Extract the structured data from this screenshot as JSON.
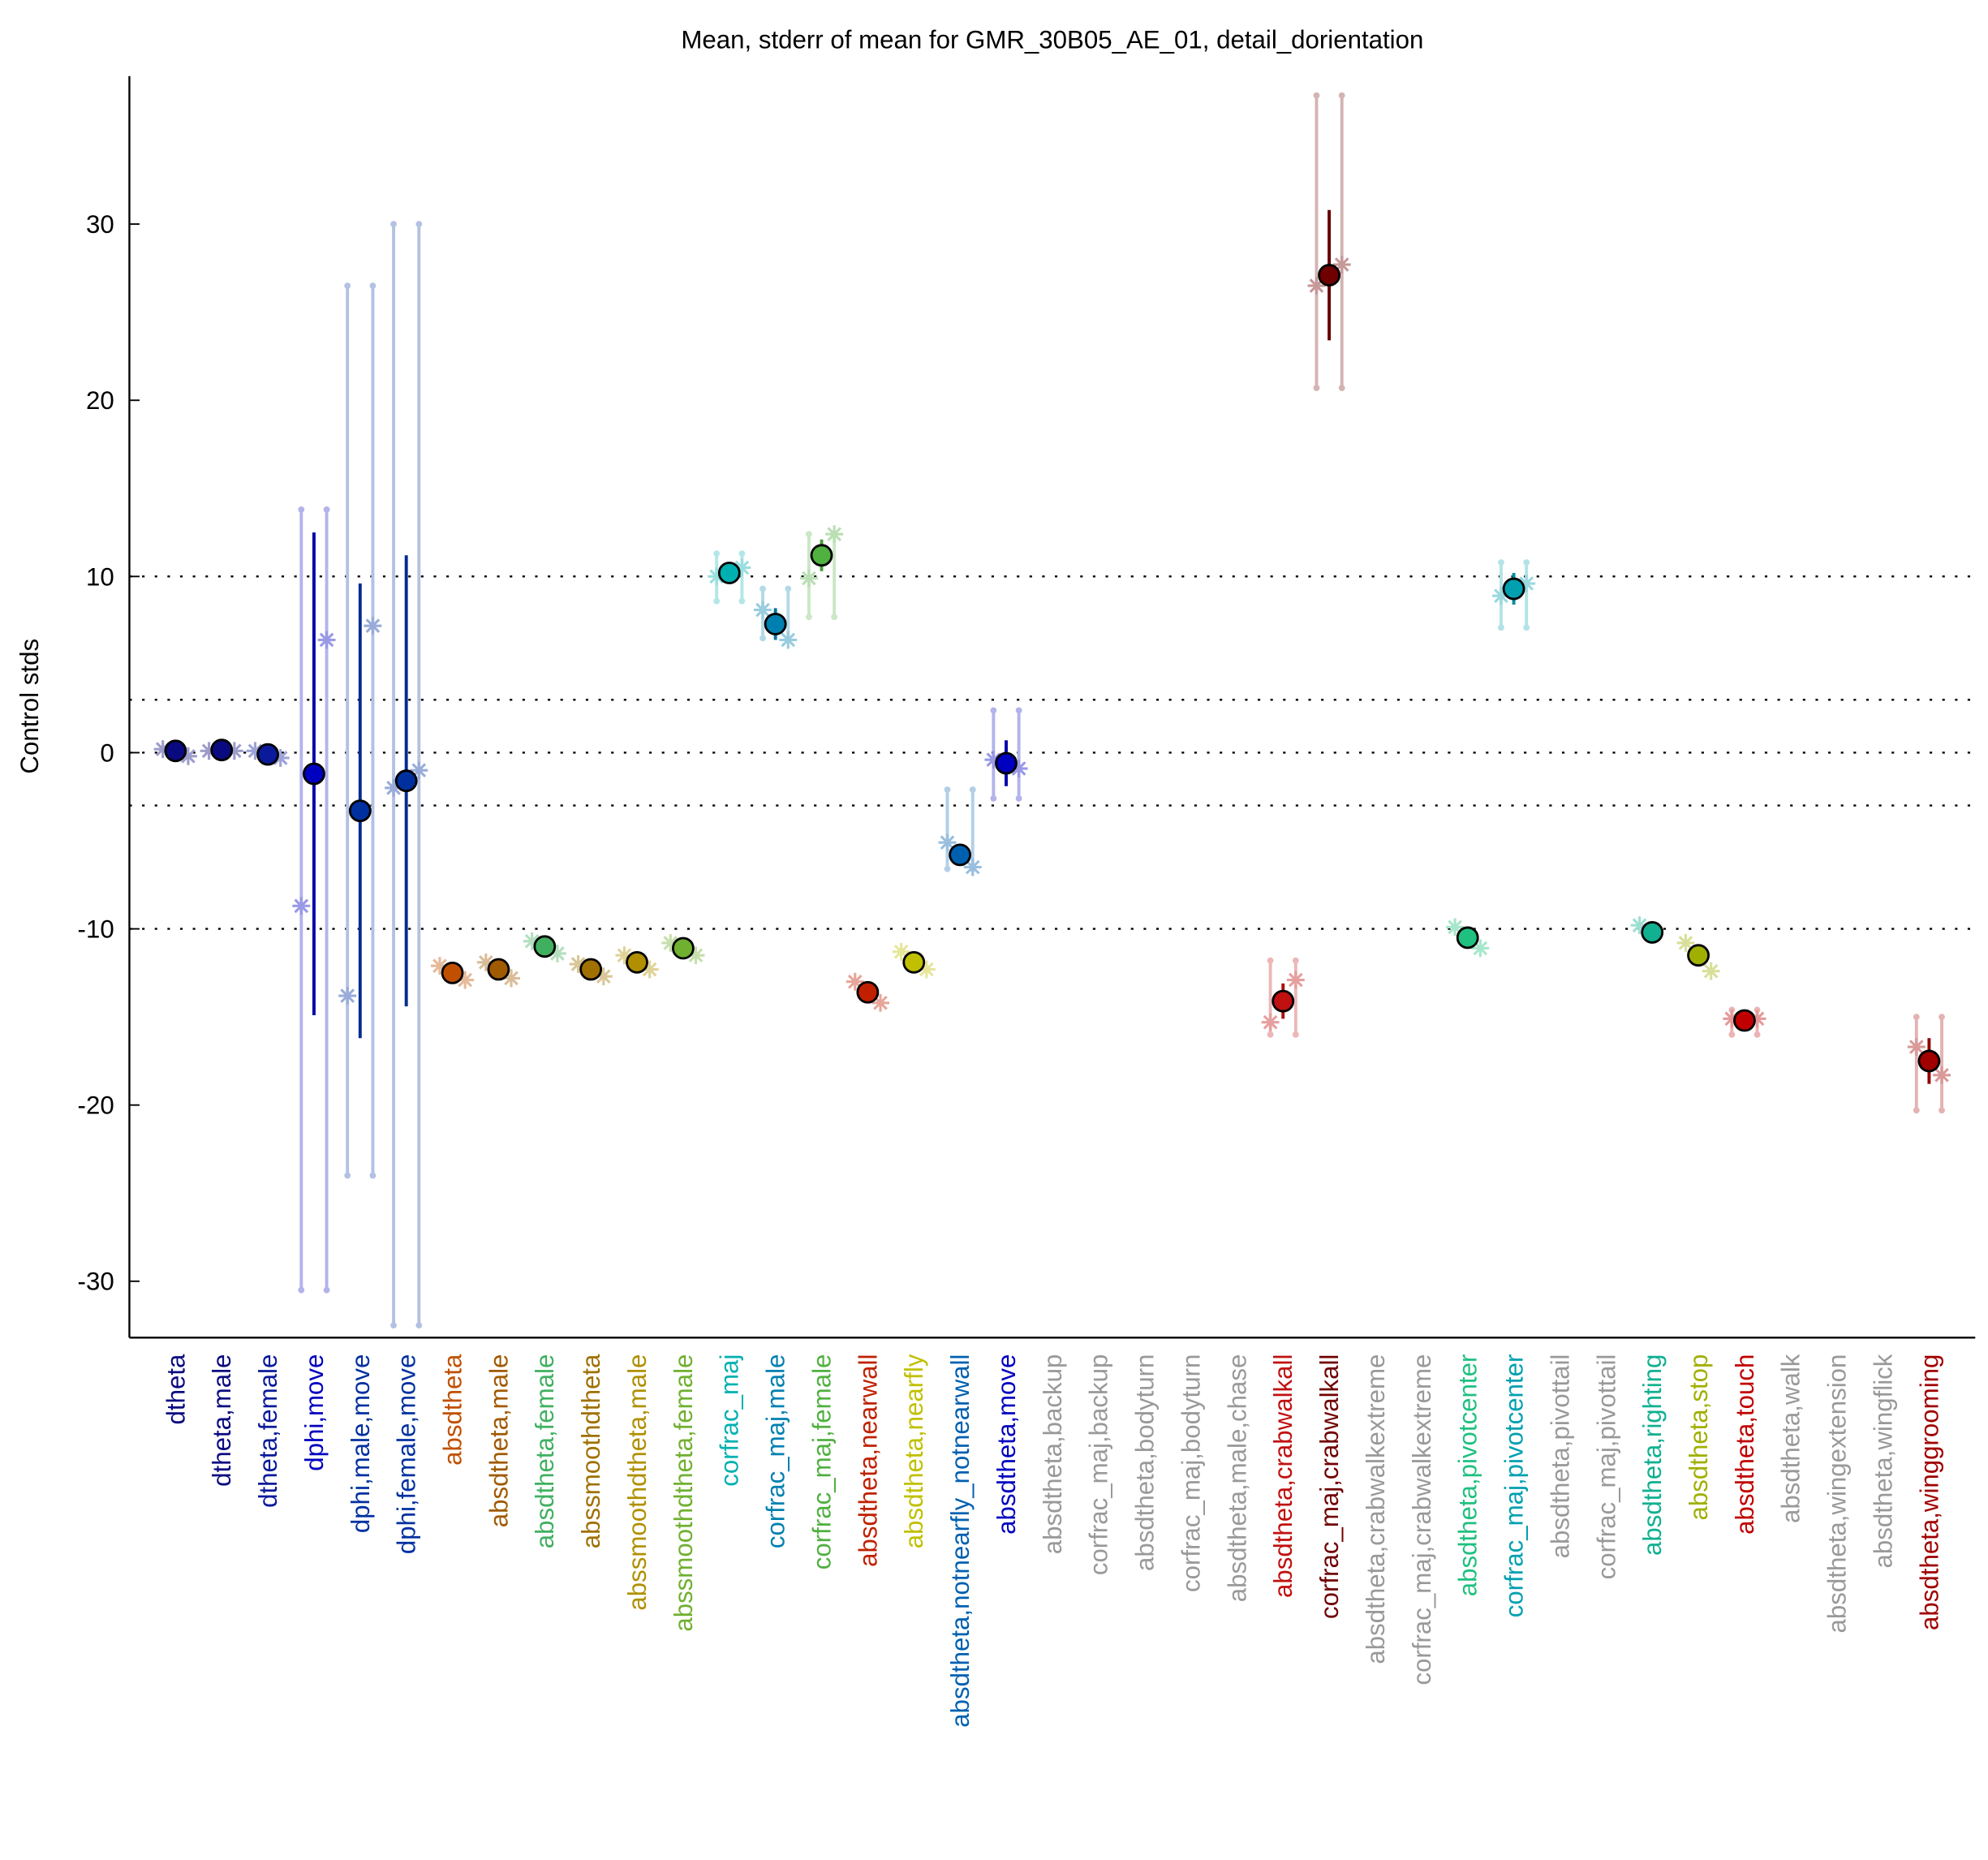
{
  "chart_data": {
    "type": "errorbar",
    "title": "Mean, stderr of mean for GMR_30B05_AE_01, detail_dorientation",
    "y_label": "Control stds",
    "categories": [
      "dtheta",
      "dtheta,male",
      "dtheta,female",
      "dphi,move",
      "dphi,male,move",
      "dphi,female,move",
      "absdtheta",
      "absdtheta,male",
      "absdtheta,female",
      "abssmoothdtheta",
      "abssmoothdtheta,male",
      "abssmoothdtheta,female",
      "corfrac_maj",
      "corfrac_maj,male",
      "corfrac_maj,female",
      "absdtheta,nearwall",
      "absdtheta,nearfly",
      "absdtheta,notnearfly_notnearwall",
      "absdtheta,move",
      "absdtheta,backup",
      "corfrac_maj,backup",
      "absdtheta,bodyturn",
      "corfrac_maj,bodyturn",
      "absdtheta,male,chase",
      "absdtheta,crabwalkall",
      "corfrac_maj,crabwalkall",
      "absdtheta,crabwalkextreme",
      "corfrac_maj,crabwalkextreme",
      "absdtheta,pivotcenter",
      "corfrac_maj,pivotcenter",
      "absdtheta,pivottail",
      "corfrac_maj,pivottail",
      "absdtheta,righting",
      "absdtheta,stop",
      "absdtheta,touch",
      "absdtheta,walk",
      "absdtheta,wingextension",
      "absdtheta,wingflick",
      "absdtheta,winggrooming"
    ],
    "label_colors": [
      "#0a0a80",
      "#0a0a80",
      "#0a1a9a",
      "#0000c0",
      "#0030a0",
      "#0030a0",
      "#c05000",
      "#a05a00",
      "#40b060",
      "#a07000",
      "#b09000",
      "#70b030",
      "#00b0b0",
      "#0080b0",
      "#50b040",
      "#c02000",
      "#c0c000",
      "#0060b0",
      "#0000c0",
      "#999999",
      "#999999",
      "#999999",
      "#999999",
      "#999999",
      "#c01010",
      "#700000",
      "#999999",
      "#999999",
      "#20c080",
      "#00a0b0",
      "#999999",
      "#999999",
      "#10b090",
      "#a0b000",
      "#c00000",
      "#999999",
      "#999999",
      "#999999",
      "#a00000"
    ],
    "values": [
      0.1,
      0.15,
      -0.1,
      -1.2,
      -3.3,
      -1.6,
      -12.5,
      -12.3,
      -11.0,
      -12.3,
      -11.9,
      -11.1,
      10.2,
      7.3,
      11.2,
      -13.6,
      -11.9,
      -5.8,
      -0.6,
      null,
      null,
      null,
      null,
      null,
      -14.1,
      27.1,
      null,
      null,
      -10.5,
      9.3,
      null,
      null,
      -10.2,
      -11.5,
      -15.2,
      null,
      null,
      null,
      -17.5
    ],
    "errors": [
      0.3,
      0.3,
      0.3,
      13.7,
      12.9,
      12.8,
      0.3,
      0.3,
      0.3,
      0.3,
      0.3,
      0.3,
      0.4,
      0.9,
      0.9,
      0.3,
      0.3,
      0.5,
      1.3,
      null,
      null,
      null,
      null,
      null,
      1.0,
      3.7,
      null,
      null,
      0.3,
      0.9,
      null,
      null,
      0.5,
      0.3,
      0.3,
      null,
      null,
      null,
      1.3
    ],
    "points_left": [
      0.2,
      0.1,
      0.1,
      -8.7,
      -13.8,
      -2.0,
      -12.1,
      -11.9,
      -10.7,
      -12.0,
      -11.5,
      -10.8,
      10.0,
      8.1,
      9.9,
      -13.0,
      -11.3,
      -5.1,
      -0.4,
      null,
      null,
      null,
      null,
      null,
      -15.3,
      26.5,
      null,
      null,
      -9.9,
      8.9,
      null,
      null,
      -9.8,
      -10.8,
      -15.1,
      null,
      null,
      null,
      -16.7
    ],
    "points_right": [
      -0.2,
      0.1,
      -0.3,
      6.4,
      7.2,
      -1.0,
      -12.9,
      -12.8,
      -11.4,
      -12.7,
      -12.3,
      -11.5,
      10.5,
      6.4,
      12.4,
      -14.2,
      -12.3,
      -6.5,
      -0.9,
      null,
      null,
      null,
      null,
      null,
      -12.9,
      27.7,
      null,
      null,
      -11.1,
      9.6,
      null,
      null,
      null,
      -12.4,
      -15.1,
      null,
      null,
      null,
      -18.3
    ],
    "range_low": [
      null,
      null,
      null,
      -30.5,
      -24.0,
      -32.5,
      null,
      null,
      null,
      null,
      null,
      null,
      8.6,
      6.5,
      7.7,
      null,
      null,
      -6.6,
      -2.6,
      null,
      null,
      null,
      null,
      null,
      -16.0,
      20.7,
      null,
      null,
      null,
      7.1,
      null,
      null,
      null,
      null,
      -16.0,
      null,
      null,
      null,
      -20.3
    ],
    "range_high": [
      null,
      null,
      null,
      13.8,
      26.5,
      30.0,
      null,
      null,
      null,
      null,
      null,
      null,
      11.3,
      9.3,
      12.4,
      null,
      null,
      -2.1,
      2.4,
      null,
      null,
      null,
      null,
      null,
      -11.8,
      37.3,
      null,
      null,
      null,
      10.8,
      null,
      null,
      null,
      null,
      -14.6,
      null,
      null,
      null,
      -15.0
    ],
    "ylim": [
      -33.2,
      38.4
    ],
    "yticks": [
      -30,
      -20,
      -10,
      0,
      10,
      20,
      30
    ],
    "reference_lines": [
      10,
      3,
      0,
      -3,
      -10
    ]
  }
}
